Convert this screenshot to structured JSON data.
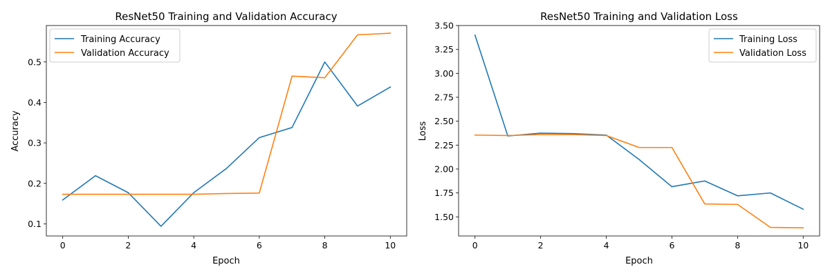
{
  "figure": {
    "background": "#ffffff",
    "series_colors": [
      "#1f77b4",
      "#ff7f0e"
    ]
  },
  "chart_data": [
    {
      "type": "line",
      "title": "ResNet50 Training and Validation Accuracy",
      "xlabel": "Epoch",
      "ylabel": "Accuracy",
      "x": [
        0,
        1,
        2,
        3,
        4,
        5,
        6,
        7,
        8,
        9,
        10
      ],
      "xlim": [
        -0.5,
        10.5
      ],
      "ylim": [
        0.07,
        0.59
      ],
      "xticks": [
        0,
        2,
        4,
        6,
        8,
        10
      ],
      "yticks": [
        0.1,
        0.2,
        0.3,
        0.4,
        0.5
      ],
      "xtick_labels": [
        "0",
        "2",
        "4",
        "6",
        "8",
        "10"
      ],
      "ytick_labels": [
        "0.1",
        "0.2",
        "0.3",
        "0.4",
        "0.5"
      ],
      "grid": false,
      "legend_position": "top-left",
      "series": [
        {
          "name": "Training Accuracy",
          "color": "#1f77b4",
          "values": [
            0.159,
            0.219,
            0.177,
            0.094,
            0.177,
            0.237,
            0.313,
            0.338,
            0.5,
            0.391,
            0.438
          ]
        },
        {
          "name": "Validation Accuracy",
          "color": "#ff7f0e",
          "values": [
            0.173,
            0.173,
            0.173,
            0.173,
            0.173,
            0.175,
            0.176,
            0.465,
            0.461,
            0.567,
            0.571
          ]
        }
      ]
    },
    {
      "type": "line",
      "title": "ResNet50 Training and Validation Loss",
      "xlabel": "Epoch",
      "ylabel": "Loss",
      "x": [
        0,
        1,
        2,
        3,
        4,
        5,
        6,
        7,
        8,
        9,
        10
      ],
      "xlim": [
        -0.5,
        10.5
      ],
      "ylim": [
        1.3,
        3.5
      ],
      "xticks": [
        0,
        2,
        4,
        6,
        8,
        10
      ],
      "yticks": [
        1.5,
        1.75,
        2.0,
        2.25,
        2.5,
        2.75,
        3.0,
        3.25,
        3.5
      ],
      "xtick_labels": [
        "0",
        "2",
        "4",
        "6",
        "8",
        "10"
      ],
      "ytick_labels": [
        "1.50",
        "1.75",
        "2.00",
        "2.25",
        "2.50",
        "2.75",
        "3.00",
        "3.25",
        "3.50"
      ],
      "grid": false,
      "legend_position": "top-right",
      "series": [
        {
          "name": "Training Loss",
          "color": "#1f77b4",
          "values": [
            3.4,
            2.345,
            2.375,
            2.37,
            2.355,
            2.1,
            1.815,
            1.875,
            1.72,
            1.75,
            1.58
          ]
        },
        {
          "name": "Validation Loss",
          "color": "#ff7f0e",
          "values": [
            2.355,
            2.35,
            2.36,
            2.36,
            2.35,
            2.225,
            2.225,
            1.635,
            1.63,
            1.39,
            1.385
          ]
        }
      ]
    }
  ]
}
